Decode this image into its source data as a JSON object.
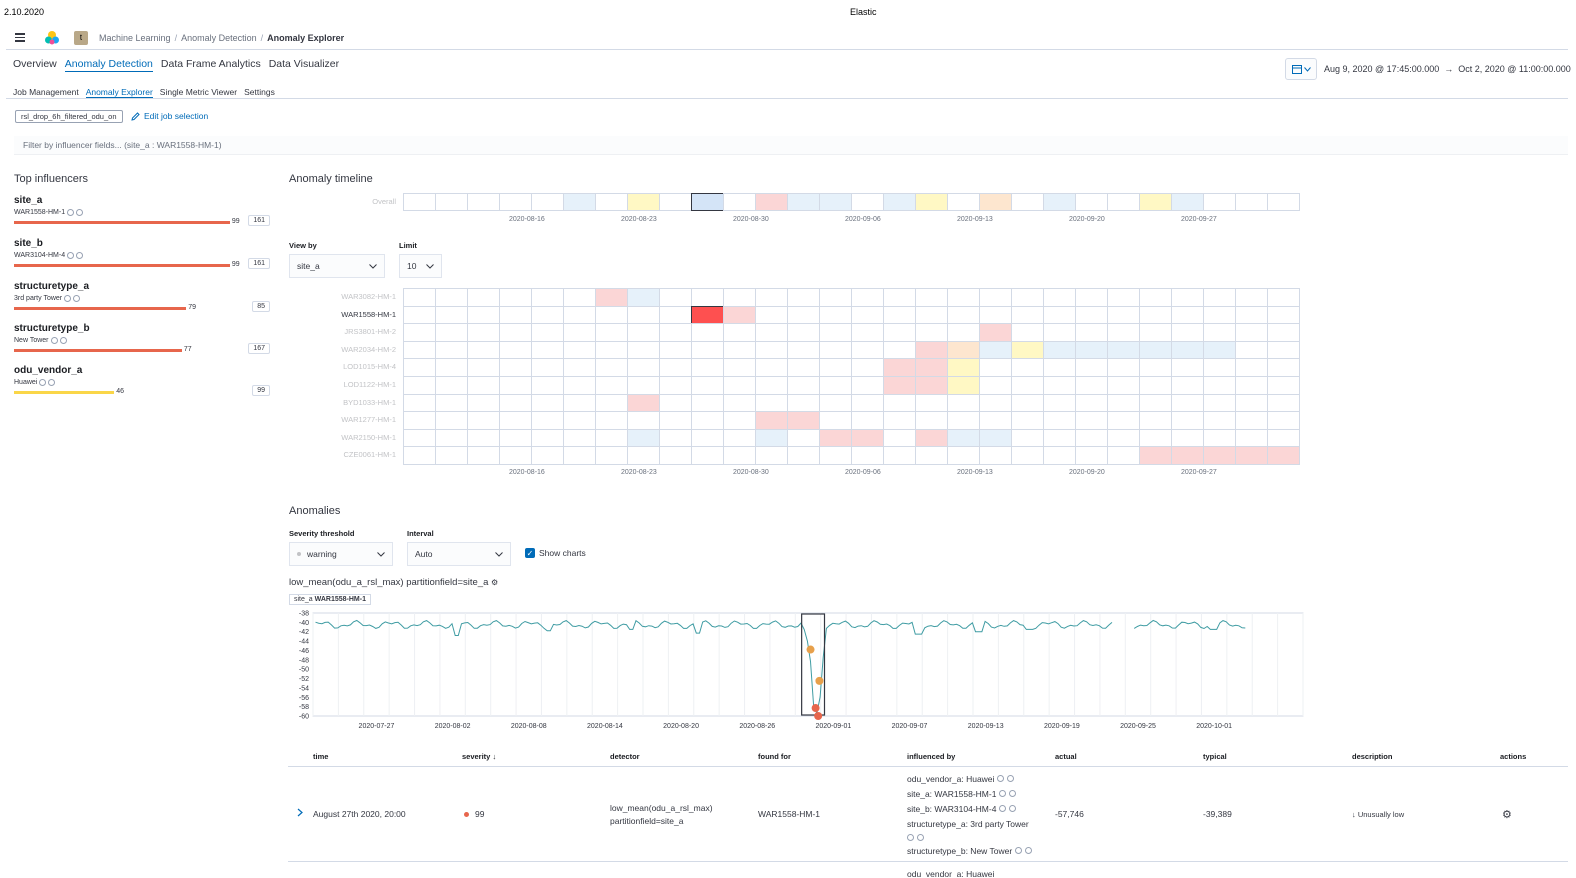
{
  "print": {
    "date": "2.10.2020",
    "title": "Elastic"
  },
  "header": {
    "space_initial": "t",
    "breadcrumbs": [
      "Machine Learning",
      "Anomaly Detection",
      "Anomaly Explorer"
    ]
  },
  "top_tabs": [
    "Overview",
    "Anomaly Detection",
    "Data Frame Analytics",
    "Data Visualizer"
  ],
  "time_range": {
    "start": "Aug 9, 2020 @ 17:45:00.000",
    "arrow": "→",
    "end": "Oct 2, 2020 @ 11:00:00.000"
  },
  "sub_tabs": [
    "Job Management",
    "Anomaly Explorer",
    "Single Metric Viewer",
    "Settings"
  ],
  "job": {
    "badge": "rsl_drop_6h_filtered_odu_on",
    "edit_label": "Edit job selection"
  },
  "filter": {
    "placeholder": "Filter by influencer fields... (site_a : WAR1558-HM-1)"
  },
  "influencers": {
    "title": "Top influencers",
    "items": [
      {
        "field": "site_a",
        "value": "WAR1558-HM-1",
        "score": "99",
        "total": "161",
        "fraction": 0.99,
        "color": "#e7664c"
      },
      {
        "field": "site_b",
        "value": "WAR3104-HM-4",
        "score": "99",
        "total": "161",
        "fraction": 0.99,
        "color": "#e7664c"
      },
      {
        "field": "structuretype_a",
        "value": "3rd party Tower",
        "score": "79",
        "total": "85",
        "fraction": 0.79,
        "color": "#e7664c"
      },
      {
        "field": "structuretype_b",
        "value": "New Tower",
        "score": "77",
        "total": "167",
        "fraction": 0.77,
        "color": "#e7664c"
      },
      {
        "field": "odu_vendor_a",
        "value": "Huawei",
        "score": "46",
        "total": "99",
        "fraction": 0.46,
        "color": "#fad648"
      }
    ]
  },
  "timeline": {
    "title": "Anomaly timeline",
    "overall_label": "Overall",
    "date_ticks": [
      "2020-08-16",
      "2020-08-23",
      "2020-08-30",
      "2020-09-06",
      "2020-09-13",
      "2020-09-20",
      "2020-09-27"
    ],
    "view_by_label": "View by",
    "view_by_value": "site_a",
    "limit_label": "Limit",
    "limit_value": "10",
    "rows": [
      "WAR3082-HM-1",
      "WAR1558-HM-1",
      "JRS3801-HM-2",
      "WAR2034-HM-2",
      "LOD1015-HM-4",
      "LOD1122-HM-1",
      "BYD1033-HM-1",
      "WAR1277-HM-1",
      "WAR2150-HM-1",
      "CZE0061-HM-1"
    ],
    "selected_row": 1,
    "colors": {
      "low": "#e6f1fa",
      "warning": "#fff8c4",
      "minor": "#fde6cf",
      "major": "#fbd6d6",
      "critical": "#fe5050"
    },
    "overall_cells": {
      "5": "low",
      "7": "warning",
      "9": "selected",
      "11": "major",
      "12": "low",
      "13": "low",
      "15": "low",
      "16": "warning",
      "18": "minor",
      "20": "low",
      "23": "warning",
      "24": "low"
    },
    "row_cells": [
      {
        "6": "major",
        "7": "low"
      },
      {
        "9": "critical",
        "10": "major"
      },
      {
        "18": "major"
      },
      {
        "16": "major",
        "17": "minor",
        "18": "low",
        "19": "warning",
        "20": "low",
        "21": "low",
        "22": "low",
        "23": "low",
        "24": "low",
        "25": "low"
      },
      {
        "15": "major",
        "16": "major",
        "17": "warning"
      },
      {
        "15": "major",
        "16": "major",
        "17": "warning"
      },
      {
        "7": "major"
      },
      {
        "11": "major",
        "12": "major"
      },
      {
        "7": "low",
        "11": "low",
        "13": "major",
        "14": "major",
        "16": "major",
        "17": "low",
        "18": "low"
      },
      {
        "23": "major",
        "24": "major",
        "25": "major",
        "26": "major",
        "27": "major"
      }
    ]
  },
  "anomalies": {
    "title": "Anomalies",
    "severity_label": "Severity threshold",
    "severity_value": "warning",
    "interval_label": "Interval",
    "interval_value": "Auto",
    "show_charts_label": "Show charts"
  },
  "chart": {
    "title": "low_mean(odu_a_rsl_max) partitionfield=site_a",
    "entity_field": "site_a",
    "entity_value": "WAR1558-HM-1"
  },
  "chart_data": {
    "type": "line",
    "title": "low_mean(odu_a_rsl_max) partitionfield=site_a",
    "xlabel": "",
    "ylabel": "",
    "ylim": [
      -60,
      -38
    ],
    "y_ticks": [
      "-38",
      "-40",
      "-42",
      "-44",
      "-46",
      "-48",
      "-50",
      "-52",
      "-54",
      "-56",
      "-58",
      "-60"
    ],
    "x_ticks": [
      "2020-07-27",
      "2020-08-02",
      "2020-08-08",
      "2020-08-14",
      "2020-08-20",
      "2020-08-26",
      "2020-09-01",
      "2020-09-07",
      "2020-09-13",
      "2020-09-19",
      "2020-09-25",
      "2020-10-01"
    ],
    "x_start": "2020-07-22",
    "x_end": "2020-10-08",
    "series_color": "#3f9ca3",
    "baseline": -40.5,
    "dips": [
      {
        "day": 11.3,
        "value": -42.8
      },
      {
        "day": 18.5,
        "value": -41.8
      },
      {
        "day": 25.0,
        "value": -41.5
      },
      {
        "day": 30.4,
        "value": -42.3
      },
      {
        "day": 40.0,
        "value": -42.0
      },
      {
        "day": 47.7,
        "value": -42.5
      },
      {
        "day": 52.5,
        "value": -42.0
      },
      {
        "day": 56.5,
        "value": -41.5
      },
      {
        "day": 63.5,
        "value": -41.6
      },
      {
        "day": 71.0,
        "value": -41.5
      }
    ],
    "anomaly_window": {
      "start_day": 38.5,
      "end_day": 40.3
    },
    "anomaly_points": [
      {
        "day": 39.2,
        "value": -45.8,
        "color": "#e7a04b"
      },
      {
        "day": 39.9,
        "value": -52.5,
        "color": "#e7a04b"
      },
      {
        "day": 39.6,
        "value": -58.3,
        "color": "#e7664c"
      },
      {
        "day": 39.8,
        "value": -60.0,
        "color": "#e7664c"
      }
    ]
  },
  "table": {
    "headers": [
      "time",
      "severity",
      "detector",
      "found for",
      "influenced by",
      "actual",
      "typical",
      "description",
      "actions"
    ],
    "rows": [
      {
        "time": "August 27th 2020, 20:00",
        "severity": "99",
        "detector_1": "low_mean(odu_a_rsl_max)",
        "detector_2": "partitionfield=site_a",
        "found_for": "WAR1558-HM-1",
        "influenced_by": [
          "odu_vendor_a: Huawei",
          "site_a: WAR1558-HM-1",
          "site_b: WAR3104-HM-4",
          "structuretype_a: 3rd party Tower",
          "structuretype_b: New Tower"
        ],
        "actual": "-57,746",
        "typical": "-39,389",
        "description": "Unusually low"
      }
    ],
    "next_row_partial": "odu_vendor_a: Huawei"
  }
}
